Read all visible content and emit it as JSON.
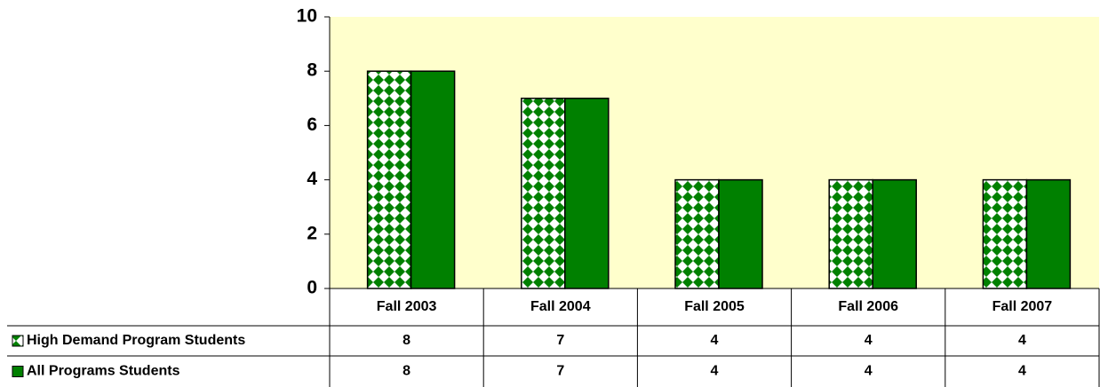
{
  "chart_data": {
    "type": "bar",
    "categories": [
      "Fall 2003",
      "Fall 2004",
      "Fall 2005",
      "Fall 2006",
      "Fall 2007"
    ],
    "series": [
      {
        "name": "High Demand Program Students",
        "color": "#008000",
        "fill": "checker",
        "values": [
          8,
          7,
          4,
          4,
          4
        ]
      },
      {
        "name": "All Programs Students",
        "color": "#008000",
        "values": [
          8,
          7,
          4,
          4,
          4
        ]
      }
    ],
    "ylim": [
      0,
      10
    ],
    "yticks": [
      0,
      2,
      4,
      6,
      8,
      10
    ],
    "plot_background": "#ffffcc",
    "data_table": true
  }
}
